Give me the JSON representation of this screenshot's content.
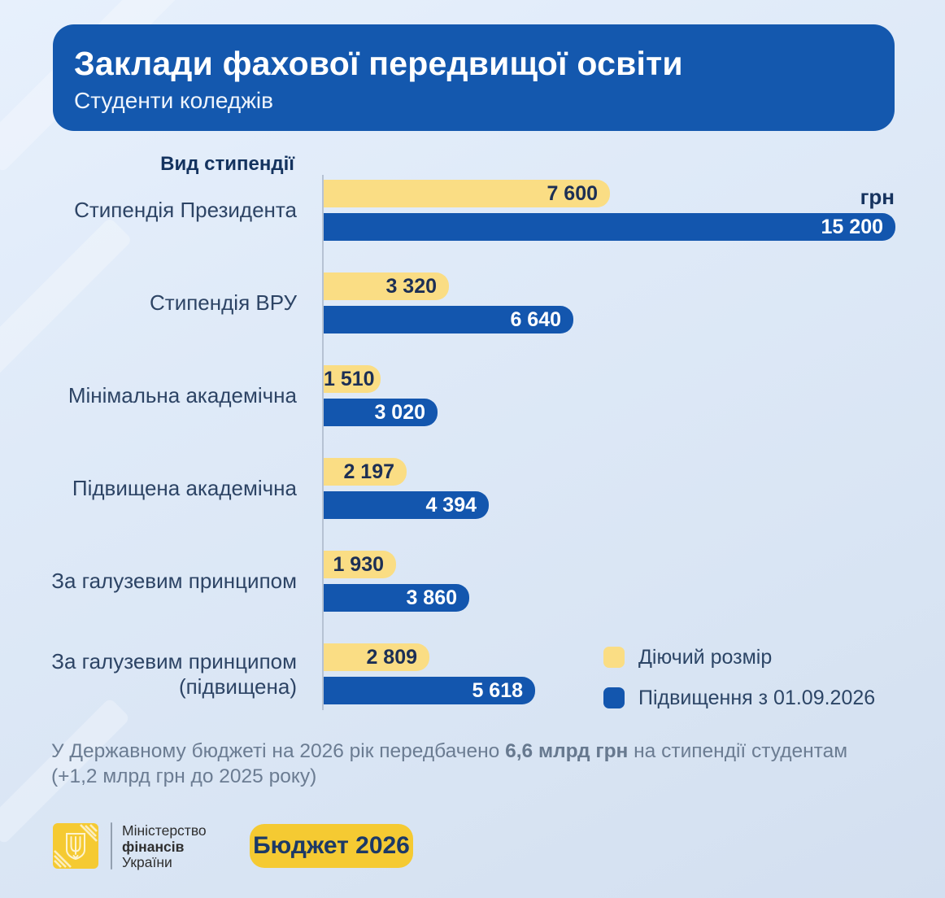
{
  "header": {
    "title": "Заклади фахової передвищої освіти",
    "subtitle": "Студенти коледжів"
  },
  "chart_data": {
    "type": "bar",
    "orientation": "horizontal",
    "axis_label": "Вид стипендії",
    "unit_label": "грн",
    "categories": [
      "Стипендія Президента",
      "Стипендія ВРУ",
      "Мінімальна академічна",
      "Підвищена академічна",
      "За галузевим принципом",
      "За галузевим принципом (підвищена)"
    ],
    "series": [
      {
        "name": "Діючий розмір",
        "color": "#fadd84",
        "label_color": "#1c2f55",
        "values": [
          7600,
          3320,
          1510,
          2197,
          1930,
          2809
        ],
        "labels": [
          "7 600",
          "3 320",
          "1 510",
          "2 197",
          "1 930",
          "2 809"
        ]
      },
      {
        "name": "Підвищення з 01.09.2026",
        "color": "#1356ae",
        "label_color": "#ffffff",
        "values": [
          15200,
          6640,
          3020,
          4394,
          3860,
          5618
        ],
        "labels": [
          "15 200",
          "6 640",
          "3 020",
          "4 394",
          "3 860",
          "5 618"
        ]
      }
    ],
    "xlim": [
      0,
      15200
    ],
    "grid": false,
    "legend_position": "bottom-right"
  },
  "footnote": {
    "text_before": "У Державному бюджеті на 2026 рік передбачено ",
    "bold": "6,6 млрд грн",
    "text_after": " на стипендії студентам (+1,2 млрд грн до 2025 року)"
  },
  "footer": {
    "ministry_line1": "Міністерство",
    "ministry_line2": "фінансів",
    "ministry_line3": "України",
    "badge": "Бюджет 2026"
  },
  "colors": {
    "header_bg": "#1458ae",
    "bar_yellow": "#fadd84",
    "bar_blue": "#1356ae",
    "badge_yellow": "#f5ca32",
    "background": "#dfeaf8",
    "text_navy": "#16335f"
  }
}
